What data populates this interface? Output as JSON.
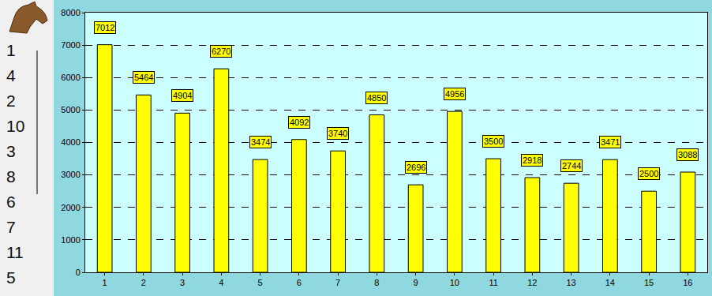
{
  "chart_data": {
    "type": "bar",
    "categories": [
      "1",
      "2",
      "3",
      "4",
      "5",
      "6",
      "7",
      "8",
      "9",
      "10",
      "11",
      "12",
      "13",
      "14",
      "15",
      "16"
    ],
    "values": [
      7012,
      5464,
      4904,
      6270,
      3474,
      4092,
      3740,
      4850,
      2696,
      4956,
      3500,
      2918,
      2744,
      3471,
      2500,
      3088
    ],
    "color": "#ffff00",
    "ylim": [
      0,
      8000
    ],
    "yticks": [
      0,
      1000,
      2000,
      3000,
      4000,
      5000,
      6000,
      7000,
      8000
    ],
    "grid": true,
    "data_labels": true
  },
  "side_list": [
    1,
    4,
    2,
    10,
    3,
    8,
    6,
    7,
    11,
    5
  ]
}
